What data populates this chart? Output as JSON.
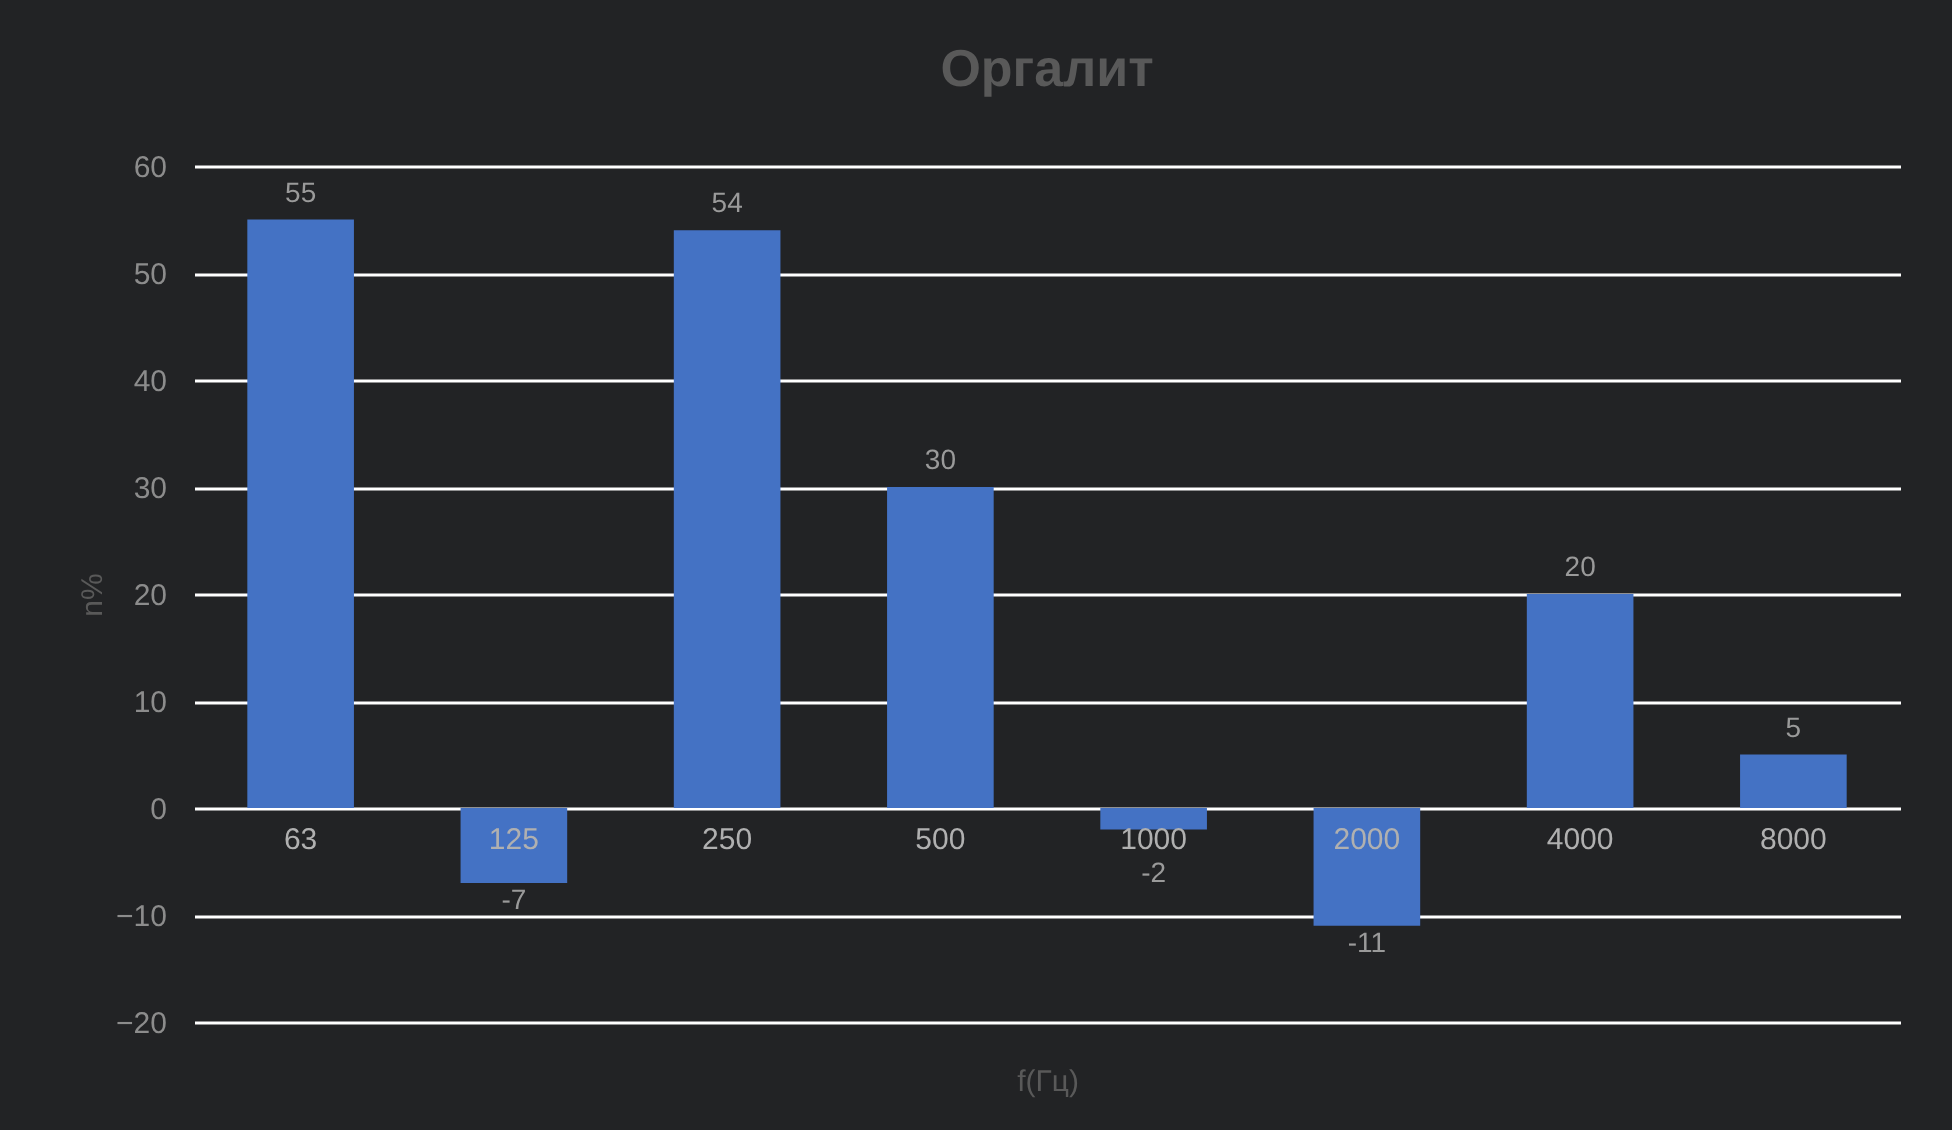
{
  "chart_data": {
    "type": "bar",
    "title": "Оргалит",
    "xlabel": "f(Гц)",
    "ylabel": "n%",
    "categories": [
      "63",
      "125",
      "250",
      "500",
      "1000",
      "2000",
      "4000",
      "8000"
    ],
    "values": [
      55,
      -7,
      54,
      30,
      -2,
      -11,
      20,
      5
    ],
    "color": "#4472c4",
    "ylim": [
      -20,
      60
    ],
    "yticks": [
      -20,
      -10,
      0,
      10,
      20,
      30,
      40,
      50,
      60
    ],
    "grid": true,
    "data_labels": true
  }
}
